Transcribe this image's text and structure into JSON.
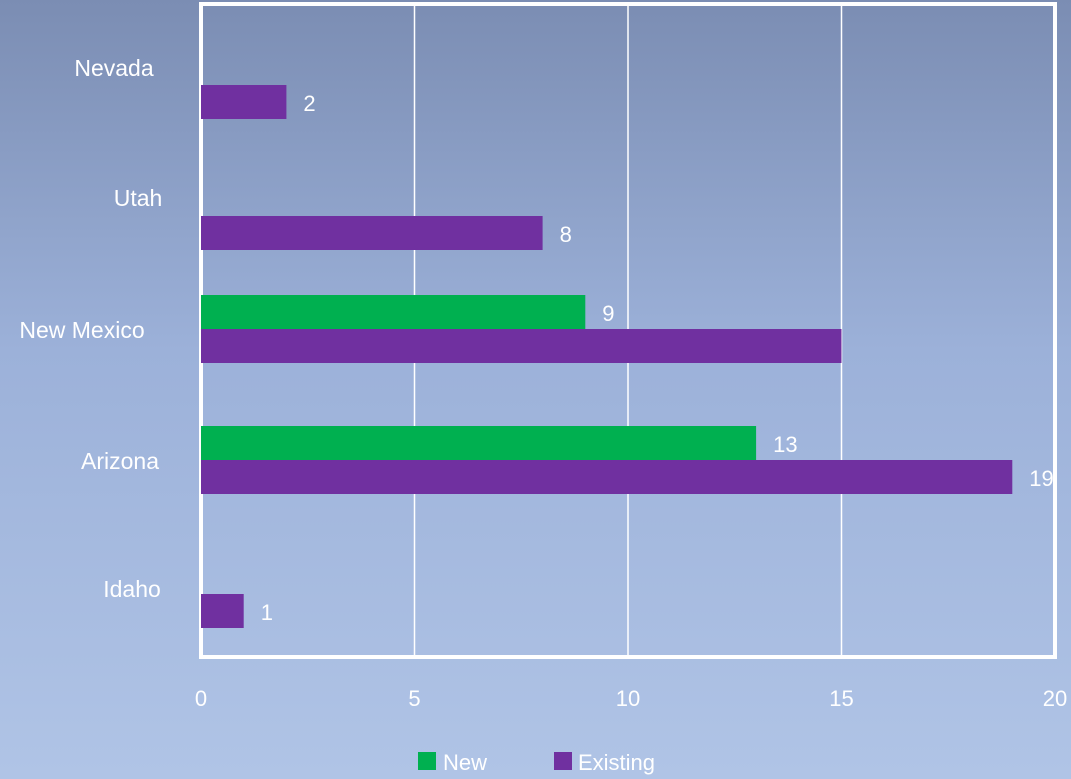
{
  "chart_data": {
    "type": "bar",
    "orientation": "horizontal",
    "categories": [
      "Nevada",
      "Utah",
      "New Mexico",
      "Arizona",
      "Idaho"
    ],
    "series": [
      {
        "name": "New",
        "color": "#00b050",
        "values": [
          null,
          null,
          9,
          13,
          null
        ],
        "labels": [
          "",
          "",
          "9",
          "13",
          ""
        ]
      },
      {
        "name": "Existing",
        "color": "#7030a0",
        "values": [
          2,
          8,
          15,
          19,
          1
        ],
        "labels": [
          "2",
          "8",
          "",
          "19",
          "1"
        ]
      }
    ],
    "xlim": [
      0,
      20
    ],
    "xticks": [
      0,
      5,
      10,
      15,
      20
    ],
    "grid": true,
    "legend_position": "bottom-center",
    "frame_color": "#ffffff"
  }
}
